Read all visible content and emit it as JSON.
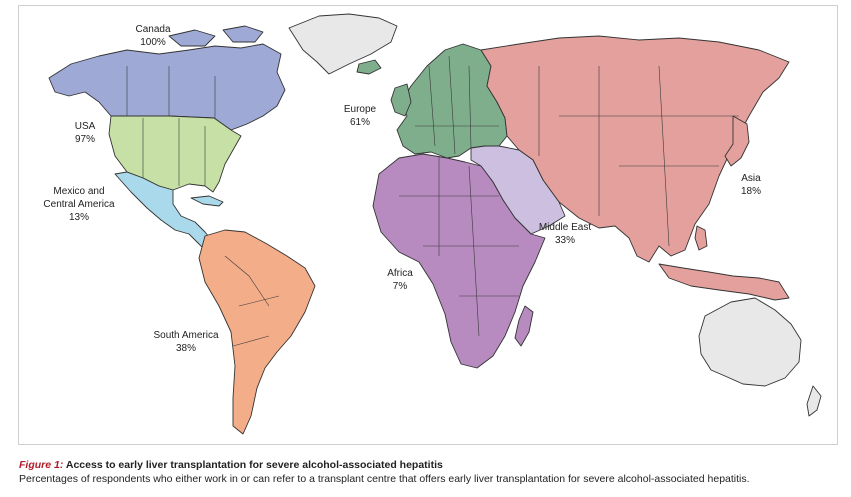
{
  "regions": [
    {
      "id": "canada",
      "name": "Canada",
      "value": "100%",
      "color": "#9ea9d6"
    },
    {
      "id": "usa",
      "name": "USA",
      "value": "97%",
      "color": "#c6e0a6"
    },
    {
      "id": "mexico",
      "name": "Mexico and Central America",
      "name_lines": [
        "Mexico and",
        "Central America"
      ],
      "value": "13%",
      "color": "#a9d9ea"
    },
    {
      "id": "south_america",
      "name": "South America",
      "value": "38%",
      "color": "#f4ad89"
    },
    {
      "id": "europe",
      "name": "Europe",
      "value": "61%",
      "color": "#7fae8d"
    },
    {
      "id": "africa",
      "name": "Africa",
      "value": "7%",
      "color": "#b78bc0"
    },
    {
      "id": "middle_east",
      "name": "Middle East",
      "value": "33%",
      "color": "#cdbfe0"
    },
    {
      "id": "asia",
      "name": "Asia",
      "value": "18%",
      "color": "#e3a09c"
    }
  ],
  "no_data_color": "#e8e8e8",
  "caption": {
    "figure_label": "Figure 1:",
    "title": "Access to early liver transplantation for severe alcohol-associated hepatitis",
    "description": "Percentages of respondents who either work in or can refer to a transplant centre that offers early liver transplantation for severe alcohol-associated hepatitis."
  }
}
